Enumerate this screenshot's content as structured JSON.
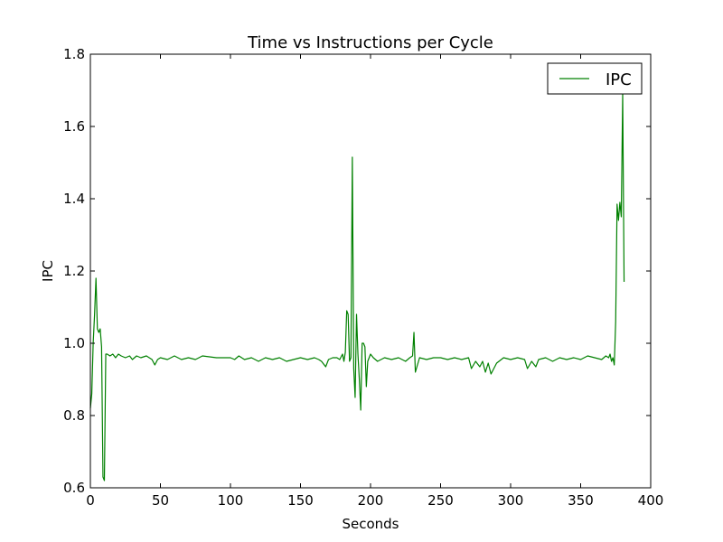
{
  "chart_data": {
    "type": "line",
    "title": "Time vs Instructions per Cycle",
    "xlabel": "Seconds",
    "ylabel": "IPC",
    "xlim": [
      0,
      400
    ],
    "ylim": [
      0.6,
      1.8
    ],
    "xticks": [
      0,
      50,
      100,
      150,
      200,
      250,
      300,
      350,
      400
    ],
    "yticks": [
      0.6,
      0.8,
      1.0,
      1.2,
      1.4,
      1.6,
      1.8
    ],
    "xtick_labels": [
      "0",
      "50",
      "100",
      "150",
      "200",
      "250",
      "300",
      "350",
      "400"
    ],
    "ytick_labels": [
      "0.6",
      "0.8",
      "1.0",
      "1.2",
      "1.4",
      "1.6",
      "1.8"
    ],
    "grid": false,
    "legend": {
      "position": "top-right",
      "entries": [
        "IPC"
      ]
    },
    "series": [
      {
        "name": "IPC",
        "color": "#008000",
        "x": [
          0,
          1,
          2,
          3,
          4,
          5,
          6,
          7,
          8,
          9,
          10,
          11,
          12,
          14,
          16,
          18,
          20,
          22,
          25,
          28,
          30,
          33,
          36,
          40,
          44,
          46,
          48,
          50,
          55,
          60,
          65,
          70,
          75,
          80,
          90,
          100,
          103,
          106,
          110,
          115,
          120,
          125,
          130,
          135,
          140,
          145,
          150,
          155,
          160,
          163,
          165,
          168,
          170,
          173,
          176,
          178,
          180,
          181,
          182,
          183,
          184,
          185,
          186,
          187,
          188,
          189,
          190,
          191,
          192,
          193,
          194,
          195,
          196,
          197,
          198,
          199,
          200,
          202,
          205,
          210,
          215,
          220,
          225,
          228,
          230,
          231,
          232,
          235,
          240,
          245,
          250,
          255,
          260,
          265,
          270,
          272,
          275,
          278,
          280,
          282,
          284,
          286,
          290,
          295,
          300,
          305,
          310,
          312,
          315,
          318,
          320,
          325,
          330,
          335,
          340,
          345,
          350,
          355,
          360,
          365,
          368,
          370,
          371,
          372,
          373,
          374,
          375,
          376,
          377,
          378,
          379,
          380,
          381
        ],
        "values": [
          0.82,
          0.86,
          1.0,
          1.08,
          1.18,
          1.04,
          1.03,
          1.04,
          0.99,
          0.63,
          0.62,
          0.97,
          0.97,
          0.965,
          0.97,
          0.96,
          0.97,
          0.965,
          0.96,
          0.965,
          0.955,
          0.965,
          0.96,
          0.965,
          0.955,
          0.94,
          0.955,
          0.96,
          0.955,
          0.965,
          0.955,
          0.96,
          0.955,
          0.965,
          0.96,
          0.96,
          0.955,
          0.965,
          0.955,
          0.96,
          0.95,
          0.96,
          0.955,
          0.96,
          0.95,
          0.955,
          0.96,
          0.955,
          0.96,
          0.955,
          0.95,
          0.935,
          0.955,
          0.96,
          0.96,
          0.955,
          0.97,
          0.95,
          0.975,
          1.09,
          1.08,
          0.95,
          0.96,
          1.515,
          0.93,
          0.85,
          1.08,
          0.97,
          0.9,
          0.815,
          1.0,
          1.0,
          0.99,
          0.88,
          0.95,
          0.96,
          0.97,
          0.96,
          0.95,
          0.96,
          0.955,
          0.96,
          0.95,
          0.96,
          0.965,
          1.03,
          0.92,
          0.96,
          0.955,
          0.96,
          0.96,
          0.955,
          0.96,
          0.955,
          0.96,
          0.93,
          0.95,
          0.935,
          0.95,
          0.92,
          0.945,
          0.915,
          0.945,
          0.96,
          0.955,
          0.96,
          0.955,
          0.93,
          0.95,
          0.935,
          0.955,
          0.96,
          0.95,
          0.96,
          0.955,
          0.96,
          0.955,
          0.965,
          0.96,
          0.955,
          0.965,
          0.96,
          0.97,
          0.95,
          0.96,
          0.94,
          1.06,
          1.385,
          1.34,
          1.39,
          1.35,
          1.69,
          1.17
        ]
      }
    ]
  }
}
